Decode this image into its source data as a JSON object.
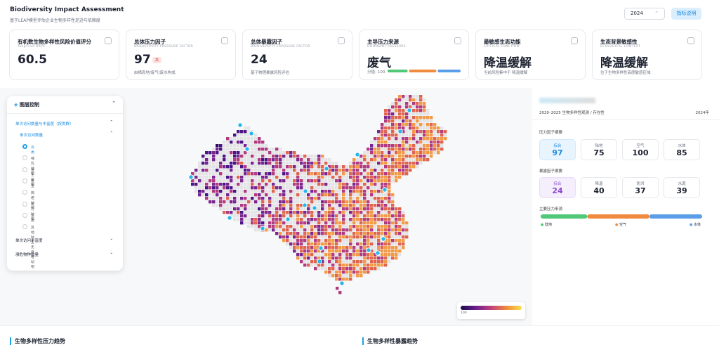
{
  "header": {
    "title": "Biodiversity Impact Assessment",
    "subtitle": "基于LEAP模型评估企业生物多样性足迹与依赖度",
    "year": "2024",
    "button": "指标说明"
  },
  "cards": [
    {
      "title": "有机数生物多样性风险价值评分",
      "subtitle": "TongYinet BRVS",
      "value": 60.5
    },
    {
      "title": "总体压力因子",
      "subtitle": "BIODIVERSITY PRESSURE FACTOR",
      "value": 97,
      "badge": "高",
      "note": "由栖息地/废气/废水构成"
    },
    {
      "title": "总体暴露因子",
      "subtitle": "BIODIVERSITY EXPOSURE FACTOR",
      "value": 24,
      "note": "基于物理暴露风险评估"
    },
    {
      "title": "主导压力来源",
      "subtitle": "DOMINANT PRESSURE",
      "value": "废气",
      "score_label": "分值:",
      "score": 100
    },
    {
      "title": "最敏感生态功能",
      "subtitle": "CRITICAL FUNCTION",
      "value": "降温缓解",
      "note": "当前风险集中于 降温缓解"
    },
    {
      "title": "生态背景敏感性",
      "subtitle": "ECOLOGICAL CONTEXT",
      "value": "降温缓解",
      "note": "位于生物多样性高度敏感区域"
    }
  ],
  "layer_panel": {
    "title": "图层控制",
    "group": "单次访问数量与丰富度（按类群）",
    "subgroup": "单次访问数量",
    "options": [
      "鸟类",
      "哺乳动物",
      "维生植物",
      "昆虫",
      "两栖动物",
      "爬行动物",
      "鱼类",
      "其他陆生无脊椎动物"
    ],
    "items": [
      "单次访问丰富度",
      "濒危物种数量"
    ]
  },
  "side_panel": {
    "period": "2020–2025 生物多样性观测 / 存在性",
    "year": "2024年",
    "pressure": {
      "title": "压力因子摘要",
      "items": [
        {
          "label": "综合",
          "value": 97
        },
        {
          "label": "陆地",
          "value": 75
        },
        {
          "label": "空气",
          "value": 100
        },
        {
          "label": "水体",
          "value": 85
        }
      ]
    },
    "exposure": {
      "title": "暴露因子摘要",
      "items": [
        {
          "label": "综合",
          "value": 24
        },
        {
          "label": "降温",
          "value": 40
        },
        {
          "label": "防洪",
          "value": 37
        },
        {
          "label": "水源",
          "value": 39
        }
      ]
    },
    "sources": {
      "title": "主要压力来源",
      "labels": [
        "陆地",
        "空气",
        "水体"
      ]
    }
  },
  "colorbar": {
    "label": "100"
  },
  "sections": [
    "生物多样性压力趋势",
    "生物多样性暴露趋势"
  ]
}
